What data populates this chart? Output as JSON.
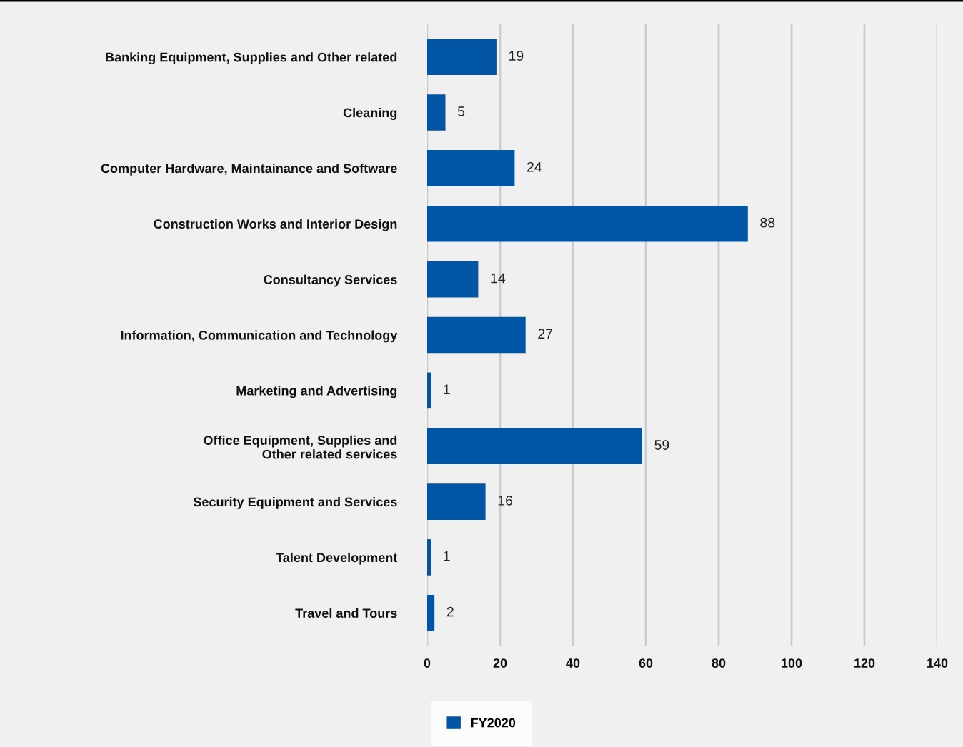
{
  "chart_data": {
    "type": "bar",
    "orientation": "horizontal",
    "categories": [
      "Banking Equipment, Supplies and Other related",
      "Cleaning",
      "Computer Hardware, Maintainance and Software",
      "Construction Works and Interior Design",
      "Consultancy Services",
      "Information, Communication and Technology",
      "Marketing and Advertising",
      "Office Equipment, Supplies and\nOther related services",
      "Security Equipment and Services",
      "Talent Development",
      "Travel and Tours"
    ],
    "series": [
      {
        "name": "FY2020",
        "color": "#0055a5",
        "values": [
          19,
          5,
          24,
          88,
          14,
          27,
          1,
          59,
          16,
          1,
          2
        ]
      }
    ],
    "xlim": [
      0,
      140
    ],
    "xticks": [
      0,
      20,
      40,
      60,
      80,
      100,
      120,
      140
    ],
    "grid": "x",
    "legend": "bottom",
    "data_labels": true
  }
}
